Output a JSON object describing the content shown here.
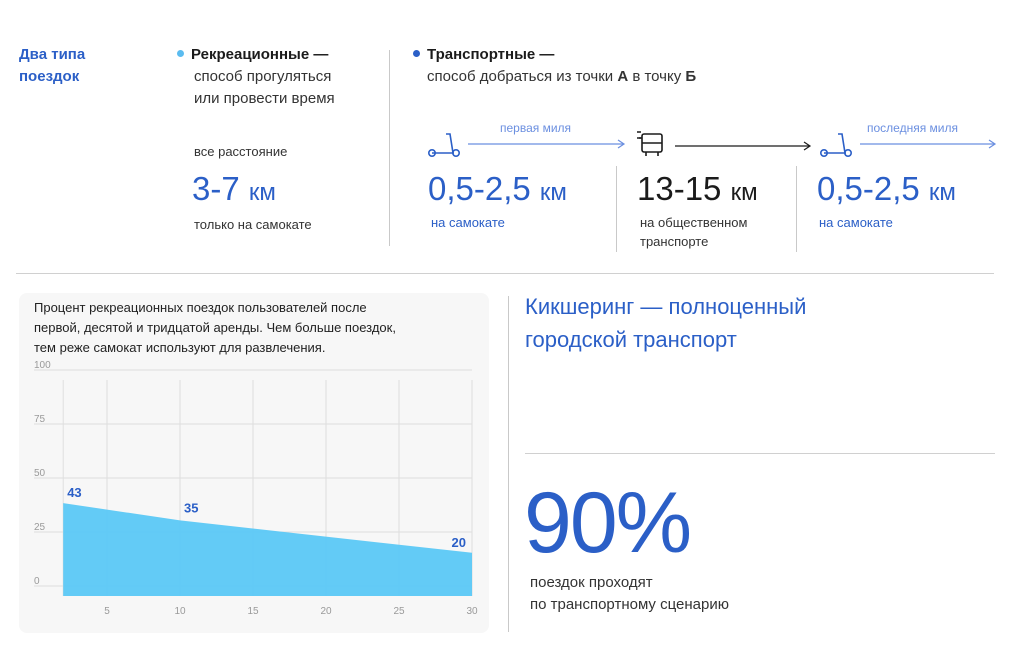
{
  "top": {
    "section_title": "Два типа поездок",
    "recreational": {
      "head": "Рекреационные —",
      "desc_line1": "способ прогуляться",
      "desc_line2": "или провести время",
      "distance_label": "все расстояние",
      "distance_value": "3-7",
      "distance_unit": "км",
      "note": "только на самокате",
      "dot_color": "#5bbcf0"
    },
    "transport": {
      "head": "Транспортные —",
      "desc_pre": "способ добраться из точки ",
      "point_a": "А",
      "desc_mid": " в точку ",
      "point_b": "Б",
      "dot_color": "#2b5fc7",
      "first_mile_label": "первая миля",
      "last_mile_label": "последняя миля",
      "segments": [
        {
          "value": "0,5-2,5",
          "unit": "км",
          "note": "на самокате"
        },
        {
          "value": "13-15",
          "unit": "км",
          "note_line1": "на общественном",
          "note_line2": "транспорте"
        },
        {
          "value": "0,5-2,5",
          "unit": "км",
          "note": "на самокате"
        }
      ]
    }
  },
  "chart_caption": {
    "line1": "Процент рекреационных поездок пользователей после",
    "line2": "первой, десятой и тридцатой аренды. Чем больше поездок,",
    "line3": "тем реже самокат используют для развлечения."
  },
  "chart_data": {
    "type": "area",
    "title": "",
    "xlabel": "",
    "ylabel": "",
    "x": [
      1,
      10,
      30
    ],
    "series": [
      {
        "values": [
          43,
          35,
          20
        ]
      }
    ],
    "data_labels": [
      "43",
      "35",
      "20"
    ],
    "xlim": [
      0,
      30
    ],
    "ylim": [
      0,
      100
    ],
    "x_ticks": [
      "5",
      "10",
      "15",
      "20",
      "25",
      "30"
    ],
    "y_ticks": [
      "100",
      "75",
      "50",
      "25",
      "0"
    ],
    "grid": true,
    "color": "#5bc8f5"
  },
  "right": {
    "headline_line1": "Кикшеринг — полноценный",
    "headline_line2": "городской транспорт",
    "big_value": "90%",
    "caption_line1": "поездок проходят",
    "caption_line2": "по транспортному сценарию"
  },
  "colors": {
    "accent": "#2b5fc7",
    "light_blue": "#5bc8f5",
    "divider": "#d0d0d0"
  }
}
